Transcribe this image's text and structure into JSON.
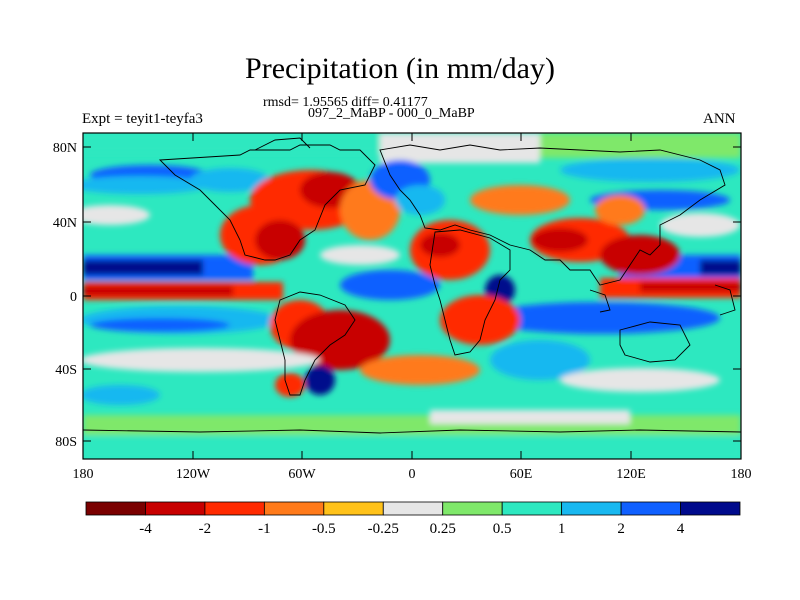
{
  "header": {
    "title": "Precipitation (in mm/day)",
    "stats": "rmsd= 1.95565 diff= 0.41177",
    "runs": "097_2_MaBP - 000_0_MaBP",
    "experiment": "Expt = teyit1-teyfa3",
    "season": "ANN"
  },
  "map": {
    "lon_ticks": [
      "180",
      "120W",
      "60W",
      "0",
      "60E",
      "120E",
      "180"
    ],
    "lat_ticks": [
      "80N",
      "40N",
      "0",
      "40S",
      "80S"
    ]
  },
  "colorbar": {
    "colors": [
      "#7a0000",
      "#c80000",
      "#ff2a00",
      "#ff7a1a",
      "#ffc21a",
      "#e6e6e6",
      "#7fe86a",
      "#2de8c0",
      "#19b8f0",
      "#1060ff",
      "#000a8c"
    ],
    "labels": [
      "-4",
      "-2",
      "-1",
      "-0.5",
      "-0.25",
      "0.25",
      "0.5",
      "1",
      "2",
      "4"
    ]
  }
}
